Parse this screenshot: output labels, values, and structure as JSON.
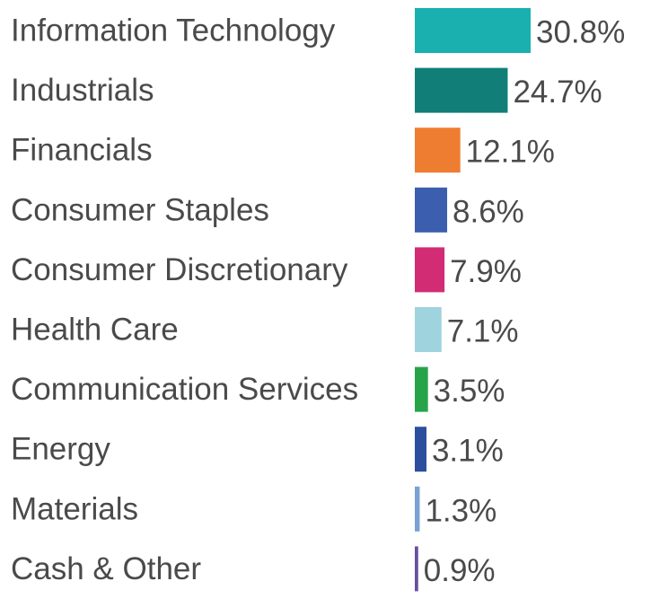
{
  "chart_data": {
    "type": "bar",
    "orientation": "horizontal",
    "title": "",
    "xlabel": "",
    "ylabel": "",
    "grid": false,
    "legend": "none",
    "categories": [
      "Information Technology",
      "Industrials",
      "Financials",
      "Consumer Staples",
      "Consumer Discretionary",
      "Health Care",
      "Communication Services",
      "Energy",
      "Materials",
      "Cash & Other"
    ],
    "values": [
      30.8,
      24.7,
      12.1,
      8.6,
      7.9,
      7.1,
      3.5,
      3.1,
      1.3,
      0.9
    ],
    "value_labels": [
      "30.8%",
      "24.7%",
      "12.1%",
      "8.6%",
      "7.9%",
      "7.1%",
      "3.5%",
      "3.1%",
      "1.3%",
      "0.9%"
    ],
    "colors": [
      "#1ab0b0",
      "#117f78",
      "#ee7d31",
      "#3b5fae",
      "#d22c74",
      "#9fd3de",
      "#27a34a",
      "#2b4f9e",
      "#7aa2d2",
      "#6a4fa0"
    ],
    "xlim": [
      0,
      30.8
    ]
  }
}
